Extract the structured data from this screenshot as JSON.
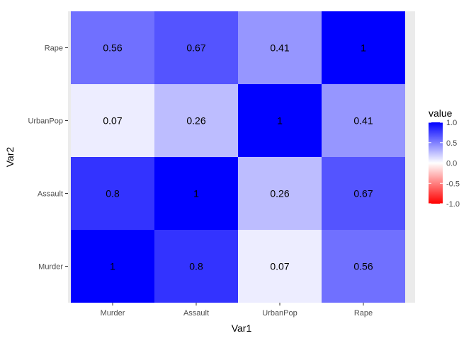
{
  "chart_data": {
    "type": "heatmap",
    "x_variable": "Var1",
    "y_variable": "Var2",
    "x_categories": [
      "Murder",
      "Assault",
      "UrbanPop",
      "Rape"
    ],
    "y_categories": [
      "Murder",
      "Assault",
      "UrbanPop",
      "Rape"
    ],
    "values": [
      [
        1,
        0.8,
        0.07,
        0.56
      ],
      [
        0.8,
        1,
        0.26,
        0.67
      ],
      [
        0.07,
        0.26,
        1,
        0.41
      ],
      [
        0.56,
        0.67,
        0.41,
        1
      ]
    ],
    "cell_labels": [
      [
        "1",
        "0.8",
        "0.07",
        "0.56"
      ],
      [
        "0.8",
        "1",
        "0.26",
        "0.67"
      ],
      [
        "0.07",
        "0.26",
        "1",
        "0.41"
      ],
      [
        "0.56",
        "0.67",
        "0.41",
        "1"
      ]
    ],
    "xlabel": "Var1",
    "ylabel": "Var2",
    "legend": {
      "title": "value",
      "range": [
        -1,
        1
      ],
      "ticks": [
        1.0,
        0.5,
        0.0,
        -0.5,
        -1.0
      ],
      "tick_labels": [
        "1.0",
        "0.5",
        "0.0",
        "-0.5",
        "-1.0"
      ],
      "low_color": "#ff0000",
      "mid_color": "#ffffff",
      "high_color": "#0000ff",
      "placement": "right"
    },
    "panel_background": "#ebebeb",
    "gridline_color": "#ffffff",
    "text_color": "#000000",
    "tick_label_color": "#4d4d4d"
  }
}
